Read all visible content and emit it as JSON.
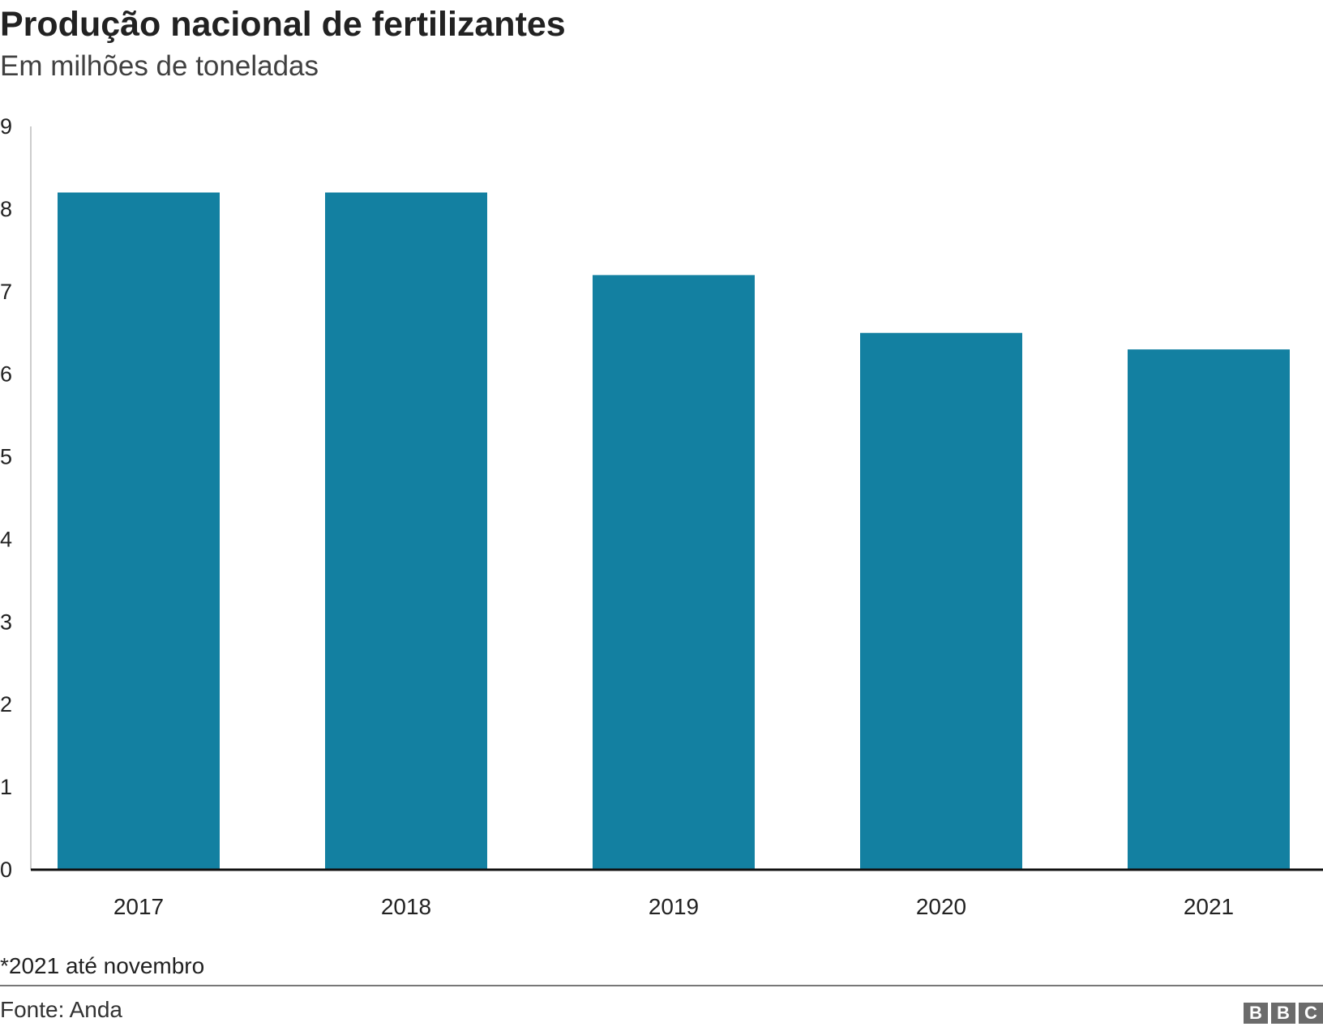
{
  "chart_data": {
    "type": "bar",
    "title": "Produção nacional de fertilizantes",
    "subtitle": "Em milhões de toneladas",
    "categories": [
      "2017",
      "2018",
      "2019",
      "2020",
      "2021"
    ],
    "values": [
      8.2,
      8.2,
      7.2,
      6.5,
      6.3
    ],
    "ylim": [
      0,
      9
    ],
    "yticks": [
      "0",
      "1",
      "2",
      "3",
      "4",
      "5",
      "6",
      "7",
      "8",
      "9"
    ],
    "xlabel": "",
    "ylabel": "",
    "grid": false,
    "bar_color": "#1380A1",
    "note": "*2021 até novembro",
    "source": "Fonte: Anda"
  },
  "logo": [
    "B",
    "B",
    "C"
  ]
}
